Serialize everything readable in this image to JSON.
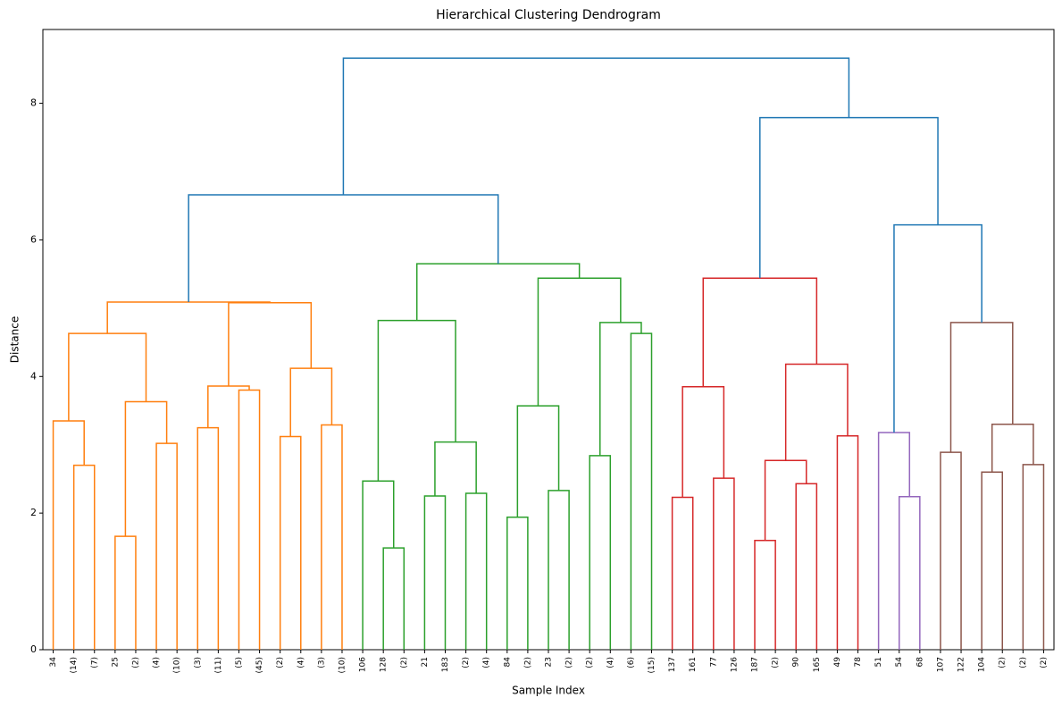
{
  "chart_data": {
    "type": "dendrogram",
    "title": "Hierarchical Clustering Dendrogram",
    "x_label": "Sample Index",
    "y_label": "Distance",
    "leaves": [
      "34",
      "(14)",
      "(7)",
      "25",
      "(2)",
      "(4)",
      "(10)",
      "(3)",
      "(11)",
      "(5)",
      "(45)",
      "(2)",
      "(4)",
      "(3)",
      "(10)",
      "106",
      "128",
      "(2)",
      "21",
      "183",
      "(2)",
      "(4)",
      "84",
      "(2)",
      "23",
      "(2)",
      "(2)",
      "(4)",
      "(6)",
      "(15)",
      "137",
      "161",
      "77",
      "126",
      "187",
      "(2)",
      "90",
      "165",
      "49",
      "78",
      "51",
      "54",
      "68",
      "107",
      "122",
      "104",
      "(2)",
      "(2)",
      "(2)"
    ],
    "merges": [
      {
        "children": [
          1,
          2
        ],
        "height": 2.7,
        "color": "#ff7f0e"
      },
      {
        "children": [
          0,
          49
        ],
        "height": 3.35,
        "color": "#ff7f0e"
      },
      {
        "children": [
          3,
          4
        ],
        "height": 1.66,
        "color": "#ff7f0e"
      },
      {
        "children": [
          5,
          6
        ],
        "height": 3.02,
        "color": "#ff7f0e"
      },
      {
        "children": [
          51,
          52
        ],
        "height": 3.63,
        "color": "#ff7f0e"
      },
      {
        "children": [
          50,
          53
        ],
        "height": 4.63,
        "color": "#ff7f0e"
      },
      {
        "children": [
          7,
          8
        ],
        "height": 3.25,
        "color": "#ff7f0e"
      },
      {
        "children": [
          9,
          10
        ],
        "height": 3.8,
        "color": "#ff7f0e"
      },
      {
        "children": [
          55,
          56
        ],
        "height": 3.86,
        "color": "#ff7f0e"
      },
      {
        "children": [
          11,
          12
        ],
        "height": 3.12,
        "color": "#ff7f0e"
      },
      {
        "children": [
          13,
          14
        ],
        "height": 3.29,
        "color": "#ff7f0e"
      },
      {
        "children": [
          58,
          59
        ],
        "height": 4.12,
        "color": "#ff7f0e"
      },
      {
        "children": [
          57,
          60
        ],
        "height": 5.08,
        "color": "#ff7f0e"
      },
      {
        "children": [
          54,
          61
        ],
        "height": 5.09,
        "color": "#ff7f0e"
      },
      {
        "children": [
          16,
          17
        ],
        "height": 1.49,
        "color": "#2ca02c"
      },
      {
        "children": [
          15,
          63
        ],
        "height": 2.47,
        "color": "#2ca02c"
      },
      {
        "children": [
          18,
          19
        ],
        "height": 2.25,
        "color": "#2ca02c"
      },
      {
        "children": [
          20,
          21
        ],
        "height": 2.29,
        "color": "#2ca02c"
      },
      {
        "children": [
          65,
          66
        ],
        "height": 3.04,
        "color": "#2ca02c"
      },
      {
        "children": [
          64,
          67
        ],
        "height": 4.82,
        "color": "#2ca02c"
      },
      {
        "children": [
          22,
          23
        ],
        "height": 1.94,
        "color": "#2ca02c"
      },
      {
        "children": [
          24,
          25
        ],
        "height": 2.33,
        "color": "#2ca02c"
      },
      {
        "children": [
          69,
          70
        ],
        "height": 3.57,
        "color": "#2ca02c"
      },
      {
        "children": [
          26,
          27
        ],
        "height": 2.84,
        "color": "#2ca02c"
      },
      {
        "children": [
          28,
          29
        ],
        "height": 4.63,
        "color": "#2ca02c"
      },
      {
        "children": [
          72,
          73
        ],
        "height": 4.79,
        "color": "#2ca02c"
      },
      {
        "children": [
          71,
          74
        ],
        "height": 5.44,
        "color": "#2ca02c"
      },
      {
        "children": [
          68,
          75
        ],
        "height": 5.65,
        "color": "#2ca02c"
      },
      {
        "children": [
          62,
          76
        ],
        "height": 6.66,
        "color": "#1f77b4"
      },
      {
        "children": [
          30,
          31
        ],
        "height": 2.23,
        "color": "#d62728"
      },
      {
        "children": [
          32,
          33
        ],
        "height": 2.51,
        "color": "#d62728"
      },
      {
        "children": [
          78,
          79
        ],
        "height": 3.85,
        "color": "#d62728"
      },
      {
        "children": [
          34,
          35
        ],
        "height": 1.6,
        "color": "#d62728"
      },
      {
        "children": [
          36,
          37
        ],
        "height": 2.43,
        "color": "#d62728"
      },
      {
        "children": [
          81,
          82
        ],
        "height": 2.77,
        "color": "#d62728"
      },
      {
        "children": [
          38,
          39
        ],
        "height": 3.13,
        "color": "#d62728"
      },
      {
        "children": [
          83,
          84
        ],
        "height": 4.18,
        "color": "#d62728"
      },
      {
        "children": [
          80,
          85
        ],
        "height": 5.44,
        "color": "#d62728"
      },
      {
        "children": [
          41,
          42
        ],
        "height": 2.24,
        "color": "#9467bd"
      },
      {
        "children": [
          40,
          87
        ],
        "height": 3.18,
        "color": "#9467bd"
      },
      {
        "children": [
          43,
          44
        ],
        "height": 2.89,
        "color": "#8c564b"
      },
      {
        "children": [
          45,
          46
        ],
        "height": 2.6,
        "color": "#8c564b"
      },
      {
        "children": [
          47,
          48
        ],
        "height": 2.71,
        "color": "#8c564b"
      },
      {
        "children": [
          90,
          91
        ],
        "height": 3.3,
        "color": "#8c564b"
      },
      {
        "children": [
          89,
          92
        ],
        "height": 4.79,
        "color": "#8c564b"
      },
      {
        "children": [
          88,
          93
        ],
        "height": 6.22,
        "color": "#1f77b4"
      },
      {
        "children": [
          86,
          94
        ],
        "height": 7.79,
        "color": "#1f77b4"
      },
      {
        "children": [
          77,
          95
        ],
        "height": 8.66,
        "color": "#1f77b4"
      }
    ],
    "ylim": [
      0,
      9.08
    ],
    "yticks": [
      0,
      2,
      4,
      6,
      8
    ]
  }
}
